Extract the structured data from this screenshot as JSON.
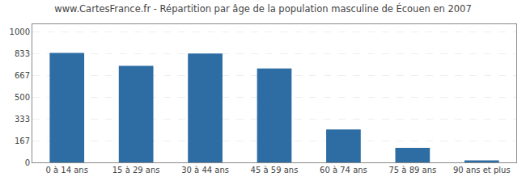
{
  "chart_data": {
    "type": "bar",
    "title": "www.CartesFrance.fr - Répartition par âge de la population masculine de Écouen en 2007",
    "categories": [
      "0 à 14 ans",
      "15 à 29 ans",
      "30 à 44 ans",
      "45 à 59 ans",
      "60 à 74 ans",
      "75 à 89 ans",
      "90 ans et plus"
    ],
    "values": [
      840,
      740,
      835,
      720,
      252,
      112,
      15
    ],
    "color": "#2e6da4",
    "ylim": [
      0,
      1060
    ],
    "yticks": [
      0,
      167,
      333,
      500,
      667,
      833,
      1000
    ],
    "grid": true
  }
}
